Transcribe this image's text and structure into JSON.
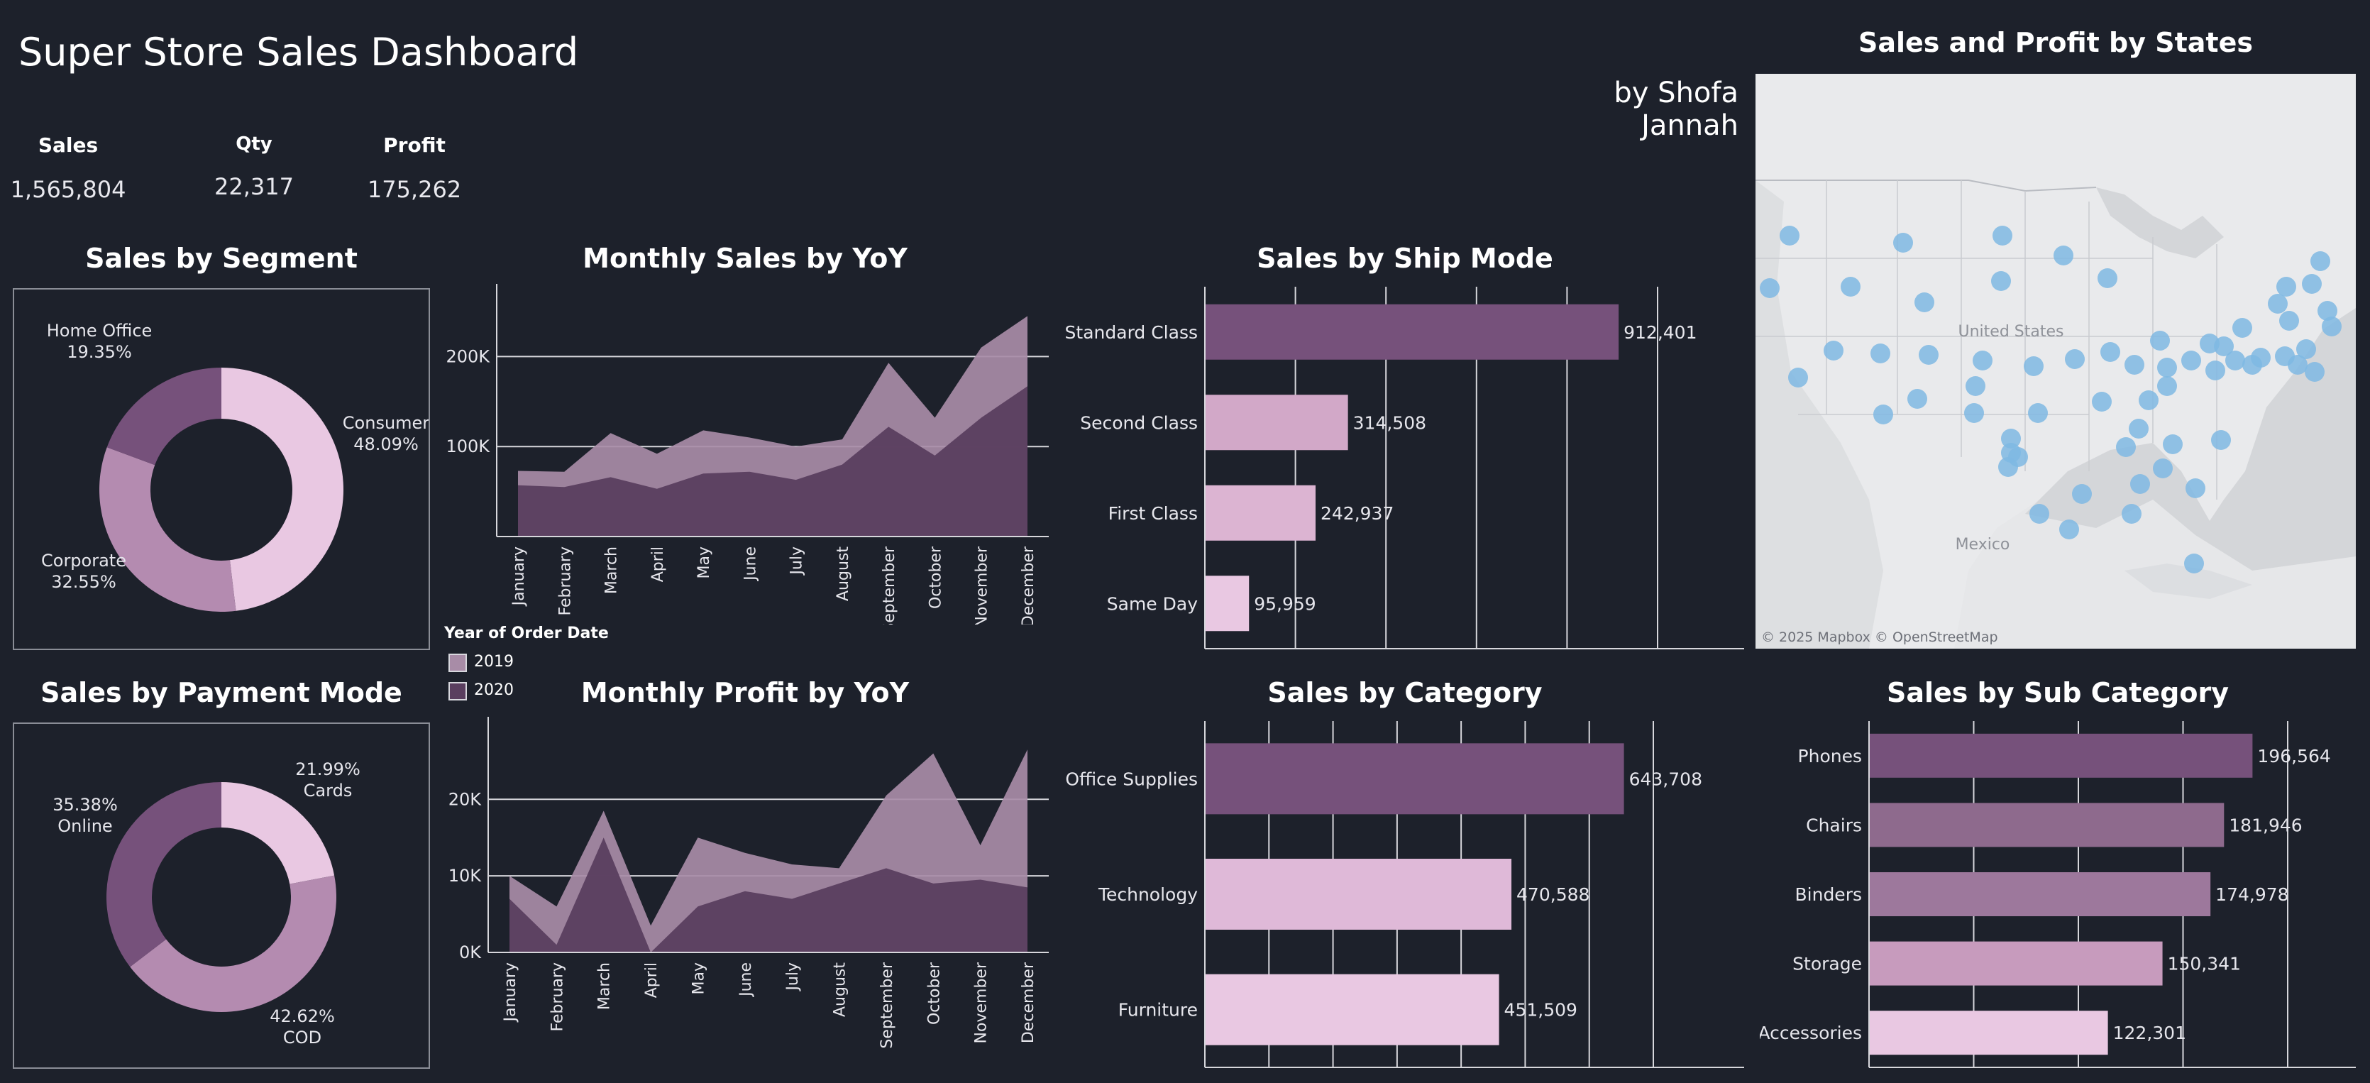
{
  "dashboard": {
    "title": "Super Store Sales Dashboard",
    "author": "by Shofa Jannah"
  },
  "kpis": [
    {
      "label": "Sales",
      "value": "1,565,804"
    },
    {
      "label": "Qty",
      "value": "22,317"
    },
    {
      "label": "Profit",
      "value": "175,262"
    }
  ],
  "colors": {
    "background": "#1d212b",
    "dark_purple": "#76517b",
    "mid_purple": "#a67fa4",
    "light_pink": "#e9c8e2",
    "series_2019": "#a88ca7",
    "series_2020": "#5a3e5f",
    "map_bubble": "#7fb8e3"
  },
  "legend": {
    "title": "Year of Order Date",
    "items": [
      {
        "label": "2019",
        "color": "#a88ca7"
      },
      {
        "label": "2020",
        "color": "#5a3e5f"
      }
    ]
  },
  "chart_data": [
    {
      "id": "segment",
      "type": "pie",
      "title": "Sales by Segment",
      "slices": [
        {
          "label": "Consumer",
          "value": 48.09,
          "pct": "48.09%",
          "color": "#e9c8e2"
        },
        {
          "label": "Corporate",
          "value": 32.55,
          "pct": "32.55%",
          "color": "#b48bb0"
        },
        {
          "label": "Home Office",
          "value": 19.35,
          "pct": "19.35%",
          "color": "#76517b"
        }
      ]
    },
    {
      "id": "payment",
      "type": "pie",
      "title": "Sales by Payment Mode",
      "slices": [
        {
          "label": "Cards",
          "value": 21.99,
          "pct": "21.99%",
          "color": "#e9c8e2"
        },
        {
          "label": "COD",
          "value": 42.62,
          "pct": "42.62%",
          "color": "#b48bb0"
        },
        {
          "label": "Online",
          "value": 35.38,
          "pct": "35.38%",
          "color": "#76517b"
        }
      ]
    },
    {
      "id": "monthly_sales",
      "type": "area",
      "title": "Monthly Sales by YoY",
      "categories": [
        "January",
        "February",
        "March",
        "April",
        "May",
        "June",
        "July",
        "August",
        "September",
        "October",
        "November",
        "December"
      ],
      "series": [
        {
          "name": "2019",
          "values": [
            73000,
            72000,
            115000,
            92000,
            118000,
            110000,
            100000,
            108000,
            193000,
            132000,
            210000,
            245000
          ]
        },
        {
          "name": "2020",
          "values": [
            57000,
            55000,
            66000,
            53000,
            70000,
            72000,
            63000,
            80000,
            122000,
            90000,
            132000,
            167000
          ]
        }
      ],
      "yticks": [
        {
          "value": 100000,
          "label": "100K"
        },
        {
          "value": 200000,
          "label": "200K"
        }
      ],
      "ylim": [
        0,
        265000
      ]
    },
    {
      "id": "monthly_profit",
      "type": "area",
      "title": "Monthly Profit by YoY",
      "categories": [
        "January",
        "February",
        "March",
        "April",
        "May",
        "June",
        "July",
        "August",
        "September",
        "October",
        "November",
        "December"
      ],
      "series": [
        {
          "name": "2019",
          "values": [
            10000,
            6000,
            18500,
            3500,
            15000,
            13000,
            11500,
            11000,
            20500,
            26000,
            14000,
            26500
          ]
        },
        {
          "name": "2020",
          "values": [
            7000,
            1000,
            15000,
            0,
            6000,
            8000,
            7000,
            9000,
            11000,
            9000,
            9500,
            8500
          ]
        }
      ],
      "yticks": [
        {
          "value": 0,
          "label": "0K"
        },
        {
          "value": 10000,
          "label": "10K"
        },
        {
          "value": 20000,
          "label": "20K"
        }
      ],
      "ylim": [
        0,
        28000
      ]
    },
    {
      "id": "ship_mode",
      "type": "bar",
      "title": "Sales by Ship Mode",
      "categories": [
        "Standard Class",
        "Second Class",
        "First Class",
        "Same Day"
      ],
      "values": [
        912401,
        314508,
        242937,
        95959
      ],
      "labels": [
        "912,401",
        "314,508",
        "242,937",
        "95,959"
      ],
      "colors": [
        "#76517b",
        "#d2a8c8",
        "#dcb4d2",
        "#e9c8e2"
      ],
      "xlim": [
        0,
        1000000
      ]
    },
    {
      "id": "category",
      "type": "bar",
      "title": "Sales by Category",
      "categories": [
        "Office Supplies",
        "Technology",
        "Furniture"
      ],
      "values": [
        643708,
        470588,
        451509
      ],
      "labels": [
        "643,708",
        "470,588",
        "451,509"
      ],
      "colors": [
        "#76517b",
        "#dfb9d8",
        "#e9c8e2"
      ],
      "xlim": [
        0,
        690000
      ]
    },
    {
      "id": "sub_category",
      "type": "bar",
      "title": "Sales by Sub Category",
      "categories": [
        "Phones",
        "Chairs",
        "Binders",
        "Storage",
        "Accessories"
      ],
      "values": [
        196564,
        181946,
        174978,
        150341,
        122301
      ],
      "labels": [
        "196,564",
        "181,946",
        "174,978",
        "150,341",
        "122,301"
      ],
      "colors": [
        "#76517b",
        "#8e6a8d",
        "#9d789c",
        "#c79bbd",
        "#e9c8e2"
      ],
      "xlim": [
        0,
        215000
      ]
    }
  ],
  "map": {
    "title": "Sales and Profit by States",
    "labels": {
      "country": "United States",
      "neighbor": "Mexico"
    },
    "attribution": "© 2025 Mapbox  © OpenStreetMap"
  }
}
